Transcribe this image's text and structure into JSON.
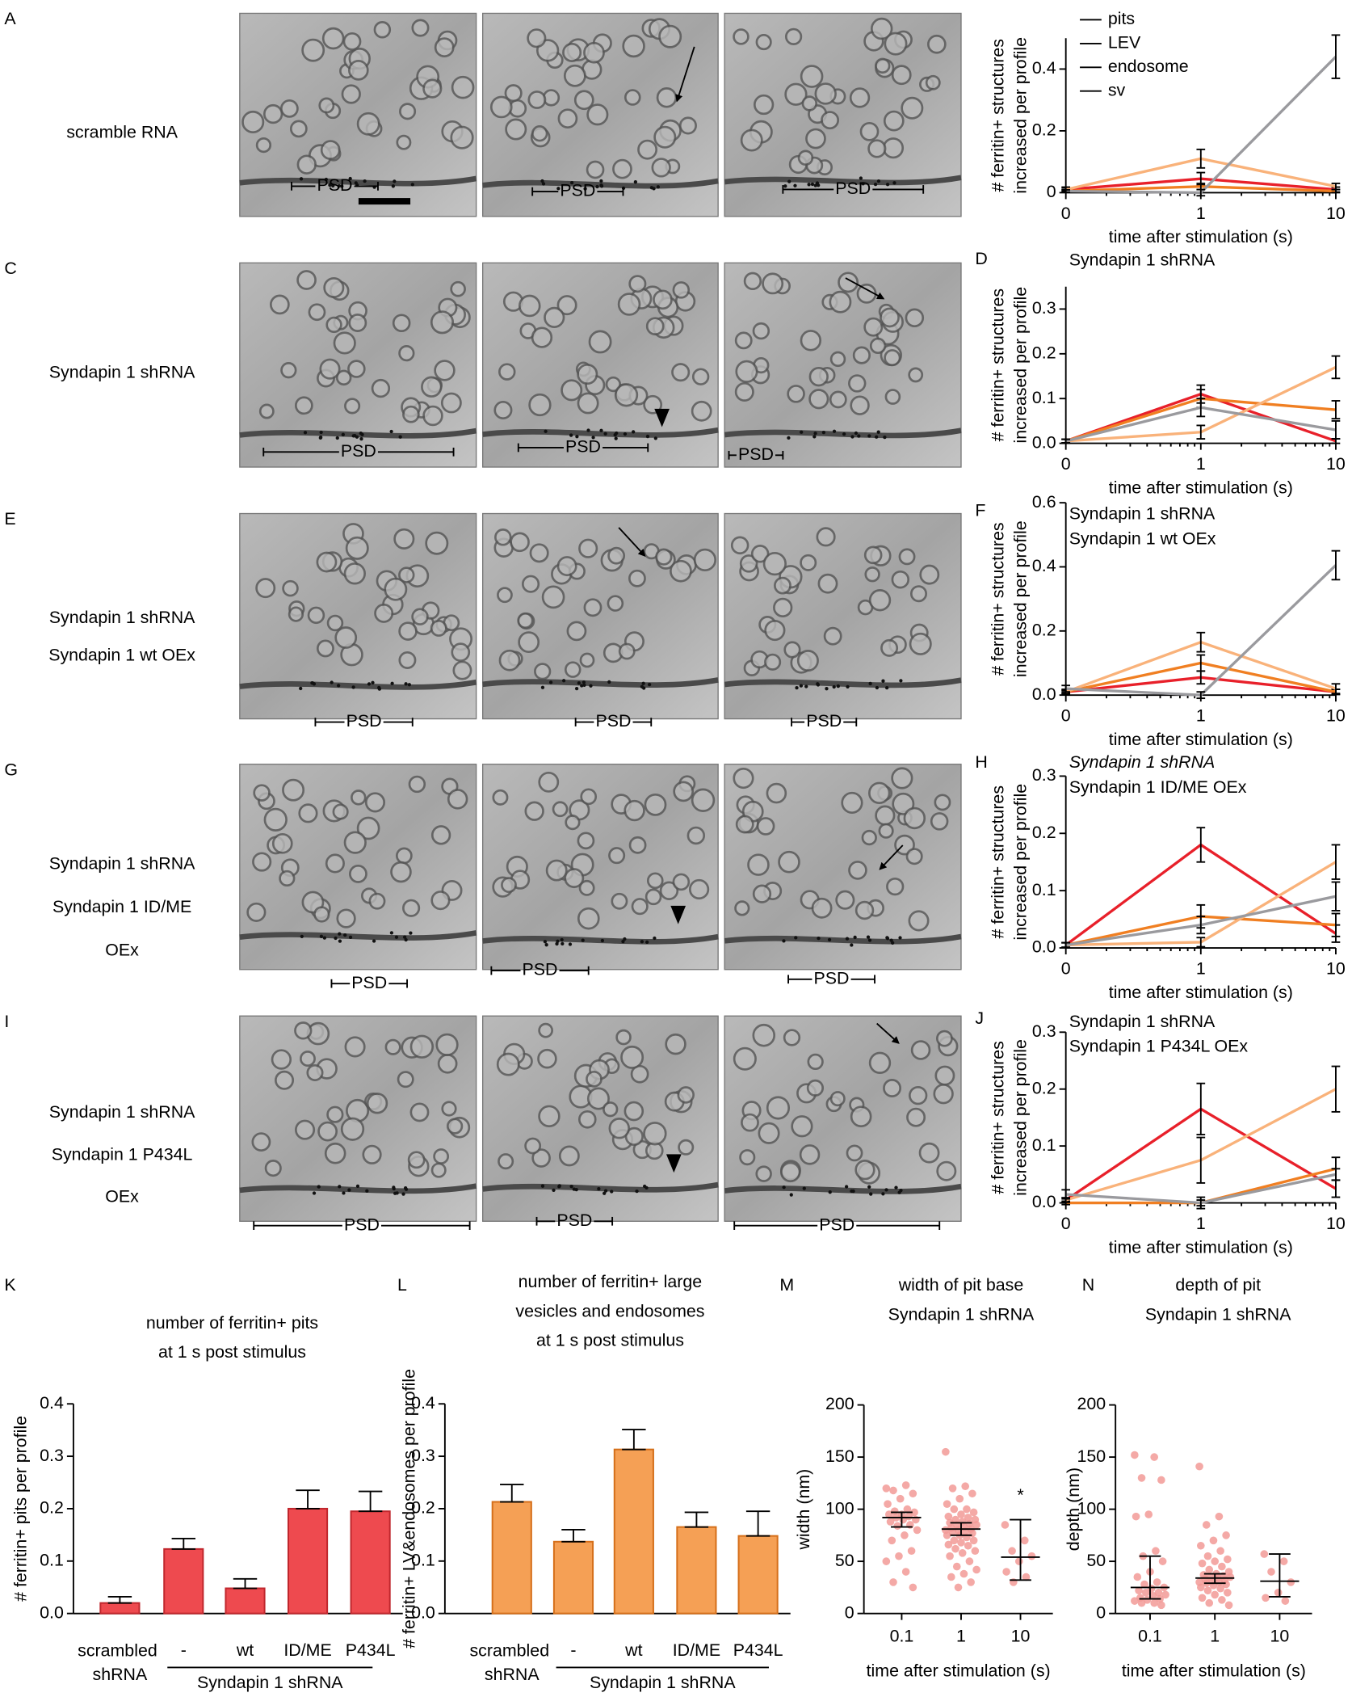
{
  "micrograph_rows": [
    {
      "letter": "A",
      "labels": [
        {
          "text": "scramble RNA",
          "color": "#000000"
        }
      ],
      "psd": [
        "PSD",
        "PSD",
        "PSD"
      ]
    },
    {
      "letter": "C",
      "labels": [
        {
          "text": "Syndapin 1 shRNA",
          "color": "#000000"
        }
      ],
      "psd": [
        "PSD",
        "PSD",
        "PSD"
      ]
    },
    {
      "letter": "E",
      "labels": [
        {
          "text": "Syndapin 1 shRNA",
          "color": "#000000"
        },
        {
          "text": "Syndapin 1 wt OEx",
          "color": "#1d2d8c"
        }
      ],
      "psd": [
        "PSD",
        "PSD",
        "PSD"
      ]
    },
    {
      "letter": "G",
      "labels": [
        {
          "text": "Syndapin 1 shRNA",
          "color": "#000000"
        },
        {
          "text": "Syndapin 1 ID/ME",
          "color": "#1e6fb8"
        },
        {
          "text": "OEx",
          "color": "#1e6fb8"
        }
      ],
      "psd": [
        "PSD",
        "PSD",
        "PSD"
      ]
    },
    {
      "letter": "I",
      "labels": [
        {
          "text": "Syndapin 1 shRNA",
          "color": "#000000"
        },
        {
          "text": "Syndapin 1 P434L",
          "color": "#29a8e0"
        },
        {
          "text": "OEx",
          "color": "#29a8e0"
        }
      ],
      "psd": [
        "PSD",
        "PSD",
        "PSD"
      ]
    }
  ],
  "chart_data": [
    {
      "type": "line",
      "categories": [
        "0",
        "1",
        "10"
      ],
      "xlabel": "time after stimulation (s)",
      "ylabel": [
        "# ferritin+ structures",
        "increased per profile"
      ],
      "ylim": [
        0,
        0.5
      ],
      "yticks": [
        0,
        0.2,
        0.4
      ],
      "legend": "top-left",
      "series": [
        {
          "name": "pits",
          "color": "#e8202a",
          "values": [
            0.01,
            0.045,
            0.01
          ],
          "errors": [
            0.005,
            0.02,
            0.008
          ]
        },
        {
          "name": "LEV",
          "color": "#f07f22",
          "values": [
            0.005,
            0.02,
            0.005
          ],
          "errors": [
            0.004,
            0.01,
            0.005
          ]
        },
        {
          "name": "endosome",
          "color": "#f9b27a",
          "values": [
            0.01,
            0.11,
            0.02
          ],
          "errors": [
            0.008,
            0.03,
            0.01
          ]
        },
        {
          "name": "sv",
          "color": "#9a9a9e",
          "values": [
            0.005,
            0.0,
            0.44
          ],
          "errors": [
            0.004,
            0.01,
            0.07
          ]
        }
      ]
    },
    {
      "type": "line",
      "letter": "D",
      "subtitle": [
        {
          "text": "Syndapin 1 shRNA",
          "color": "#000000"
        }
      ],
      "categories": [
        "0",
        "1",
        "10"
      ],
      "xlabel": "time after stimulation (s)",
      "ylabel": [
        "# ferritin+ structures",
        "increased per profile"
      ],
      "ylim": [
        0,
        0.35
      ],
      "yticks": [
        {
          "value": 0,
          "label": "0.0"
        },
        0.1,
        0.2,
        0.3
      ],
      "series": [
        {
          "color": "#e8202a",
          "values": [
            0.005,
            0.11,
            0.005
          ],
          "errors": [
            0.004,
            0.02,
            0.005
          ]
        },
        {
          "color": "#f07f22",
          "values": [
            0.005,
            0.1,
            0.075
          ],
          "errors": [
            0.004,
            0.02,
            0.02
          ]
        },
        {
          "color": "#f9b27a",
          "values": [
            0.005,
            0.025,
            0.17
          ],
          "errors": [
            0.004,
            0.015,
            0.025
          ]
        },
        {
          "color": "#9a9a9e",
          "values": [
            0.005,
            0.08,
            0.03
          ],
          "errors": [
            0.004,
            0.02,
            0.02
          ]
        }
      ]
    },
    {
      "type": "line",
      "letter": "F",
      "subtitle": [
        {
          "text": "Syndapin 1 shRNA",
          "color": "#000000"
        },
        {
          "text": "Syndapin 1 wt OEx",
          "color": "#1d2d8c"
        }
      ],
      "categories": [
        "0",
        "1",
        "10"
      ],
      "xlabel": "time after stimulation (s)",
      "ylabel": [
        "# ferritin+ structures",
        "increased per profile"
      ],
      "ylim": [
        0,
        0.6
      ],
      "yticks": [
        {
          "value": 0,
          "label": "0.0"
        },
        0.2,
        0.4,
        0.6
      ],
      "series": [
        {
          "color": "#e8202a",
          "values": [
            0.01,
            0.055,
            0.01
          ],
          "errors": [
            0.005,
            0.02,
            0.008
          ]
        },
        {
          "color": "#f07f22",
          "values": [
            0.01,
            0.1,
            0.01
          ],
          "errors": [
            0.005,
            0.025,
            0.008
          ]
        },
        {
          "color": "#f9b27a",
          "values": [
            0.01,
            0.165,
            0.02
          ],
          "errors": [
            0.008,
            0.03,
            0.015
          ]
        },
        {
          "color": "#9a9a9e",
          "values": [
            0.02,
            0.0,
            0.405
          ],
          "errors": [
            0.01,
            0.01,
            0.045
          ]
        }
      ]
    },
    {
      "type": "line",
      "letter": "H",
      "subtitle": [
        {
          "text": "Syndapin 1 shRNA",
          "color": "#000000",
          "italic": true
        },
        {
          "text": "Syndapin 1 ID/ME OEx",
          "color": "#1e6fb8"
        }
      ],
      "categories": [
        "0",
        "1",
        "10"
      ],
      "xlabel": "time after stimulation (s)",
      "ylabel": [
        "# ferritin+ structures",
        "increased per profile"
      ],
      "ylim": [
        0,
        0.3
      ],
      "yticks": [
        {
          "value": 0,
          "label": "0.0"
        },
        0.1,
        0.2,
        0.3
      ],
      "series": [
        {
          "color": "#e8202a",
          "values": [
            0.005,
            0.18,
            0.025
          ],
          "errors": [
            0.004,
            0.03,
            0.015
          ]
        },
        {
          "color": "#f07f22",
          "values": [
            0.005,
            0.055,
            0.04
          ],
          "errors": [
            0.004,
            0.02,
            0.02
          ]
        },
        {
          "color": "#f9b27a",
          "values": [
            0.005,
            0.01,
            0.15
          ],
          "errors": [
            0.004,
            0.008,
            0.03
          ]
        },
        {
          "color": "#9a9a9e",
          "values": [
            0.005,
            0.04,
            0.09
          ],
          "errors": [
            0.004,
            0.015,
            0.025
          ]
        }
      ]
    },
    {
      "type": "line",
      "letter": "J",
      "subtitle": [
        {
          "text": "Syndapin 1 shRNA",
          "color": "#000000"
        },
        {
          "text": "Syndapin 1 P434L OEx",
          "color": "#29a8e0"
        }
      ],
      "categories": [
        "0",
        "1",
        "10"
      ],
      "xlabel": "time after stimulation (s)",
      "ylabel": [
        "# ferritin+ structures",
        "increased per profile"
      ],
      "ylim": [
        0,
        0.3
      ],
      "yticks": [
        {
          "value": 0,
          "label": "0.0"
        },
        0.1,
        0.2,
        0.3
      ],
      "series": [
        {
          "color": "#e8202a",
          "values": [
            0.005,
            0.165,
            0.025
          ],
          "errors": [
            0.004,
            0.045,
            0.015
          ]
        },
        {
          "color": "#f07f22",
          "values": [
            0.0,
            0.0,
            0.06
          ],
          "errors": [
            0.003,
            0.01,
            0.02
          ]
        },
        {
          "color": "#f9b27a",
          "values": [
            0.005,
            0.075,
            0.2
          ],
          "errors": [
            0.004,
            0.04,
            0.04
          ]
        },
        {
          "color": "#9a9a9e",
          "values": [
            0.015,
            0.0,
            0.05
          ],
          "errors": [
            0.008,
            0.005,
            0.01
          ]
        }
      ]
    },
    {
      "type": "bar",
      "letter": "K",
      "title": [
        "number of ferritin+ pits",
        "at 1 s post stimulus"
      ],
      "ylabel": "# ferritin+ pits per profile",
      "categories": [
        "scrambled shRNA",
        "-",
        "wt",
        "ID/ME",
        "P434L"
      ],
      "category_colors": [
        "#000000",
        "#000000",
        "#1d2d8c",
        "#1e6fb8",
        "#29a8e0"
      ],
      "group_label": "Syndapin 1 shRNA",
      "values": [
        0.02,
        0.123,
        0.048,
        0.2,
        0.195
      ],
      "errors": [
        0.012,
        0.02,
        0.018,
        0.035,
        0.038
      ],
      "color": "#ee4a4f",
      "edge_color": "#c0272d",
      "ylim": [
        0,
        0.4
      ],
      "yticks": [
        {
          "value": 0,
          "label": "0.0"
        },
        0.1,
        0.2,
        0.3,
        0.4
      ]
    },
    {
      "type": "bar",
      "letter": "L",
      "title": [
        "number of ferritin+ large",
        "vesicles and endosomes",
        "at 1 s post stimulus"
      ],
      "ylabel": "# ferritin+ LV&endosomes per profile",
      "categories": [
        "scrambled shRNA",
        "-",
        "wt",
        "ID/ME",
        "P434L"
      ],
      "category_colors": [
        "#000000",
        "#000000",
        "#1d2d8c",
        "#1e6fb8",
        "#29a8e0"
      ],
      "group_label": "Syndapin 1 shRNA",
      "values": [
        0.213,
        0.137,
        0.313,
        0.165,
        0.148
      ],
      "errors": [
        0.033,
        0.023,
        0.038,
        0.028,
        0.047
      ],
      "color": "#f5a055",
      "edge_color": "#d56f1a",
      "ylim": [
        0,
        0.4
      ],
      "yticks": [
        {
          "value": 0,
          "label": "0.0"
        },
        0.1,
        0.2,
        0.3,
        0.4
      ]
    },
    {
      "type": "dot",
      "letter": "M",
      "title": "width of pit base",
      "subtitle": "Syndapin 1 shRNA",
      "ylabel": "width (nm)",
      "xlabel": "time after stimulation (s)",
      "categories": [
        "0.1",
        "1",
        "10"
      ],
      "ylim": [
        0,
        200
      ],
      "yticks": [
        0,
        50,
        100,
        150,
        200
      ],
      "points": [
        [
          120,
          123,
          118,
          115,
          110,
          105,
          100,
          98,
          97,
          95,
          95,
          93,
          92,
          90,
          90,
          88,
          85,
          84,
          80,
          75,
          70,
          60,
          55,
          50,
          40,
          30,
          25
        ],
        [
          155,
          122,
          120,
          115,
          110,
          105,
          100,
          100,
          97,
          95,
          93,
          92,
          90,
          90,
          88,
          87,
          86,
          85,
          85,
          83,
          82,
          81,
          80,
          80,
          79,
          78,
          77,
          75,
          75,
          73,
          70,
          70,
          68,
          66,
          65,
          62,
          60,
          58,
          55,
          50,
          45,
          42,
          38,
          35,
          30,
          25
        ],
        [
          85,
          70,
          60,
          55,
          50,
          40,
          35,
          30
        ]
      ],
      "medians": [
        92,
        81,
        54
      ],
      "ranges": [
        [
          83,
          97
        ],
        [
          75,
          87
        ],
        [
          32,
          90
        ]
      ],
      "significance": [
        null,
        null,
        "*"
      ]
    },
    {
      "type": "dot",
      "letter": "N",
      "title": "depth of pit",
      "subtitle": "Syndapin 1 shRNA",
      "ylabel": "depth (nm)",
      "xlabel": "time after stimulation (s)",
      "categories": [
        "0.1",
        "1",
        "10"
      ],
      "ylim": [
        0,
        200
      ],
      "yticks": [
        0,
        50,
        100,
        150,
        200
      ],
      "points": [
        [
          152,
          150,
          130,
          128,
          95,
          93,
          60,
          55,
          50,
          40,
          35,
          30,
          28,
          25,
          24,
          22,
          20,
          20,
          18,
          17,
          15,
          14,
          13,
          12,
          10,
          10,
          8
        ],
        [
          141,
          93,
          85,
          75,
          70,
          65,
          60,
          55,
          52,
          50,
          48,
          45,
          42,
          40,
          38,
          37,
          36,
          35,
          35,
          34,
          33,
          32,
          31,
          30,
          30,
          29,
          28,
          27,
          25,
          24,
          22,
          20,
          18,
          15,
          13,
          10,
          8
        ],
        [
          57,
          50,
          40,
          30,
          20,
          15,
          12
        ]
      ],
      "medians": [
        25,
        34,
        31
      ],
      "ranges": [
        [
          14,
          55
        ],
        [
          29,
          38
        ],
        [
          16,
          57
        ]
      ]
    }
  ]
}
